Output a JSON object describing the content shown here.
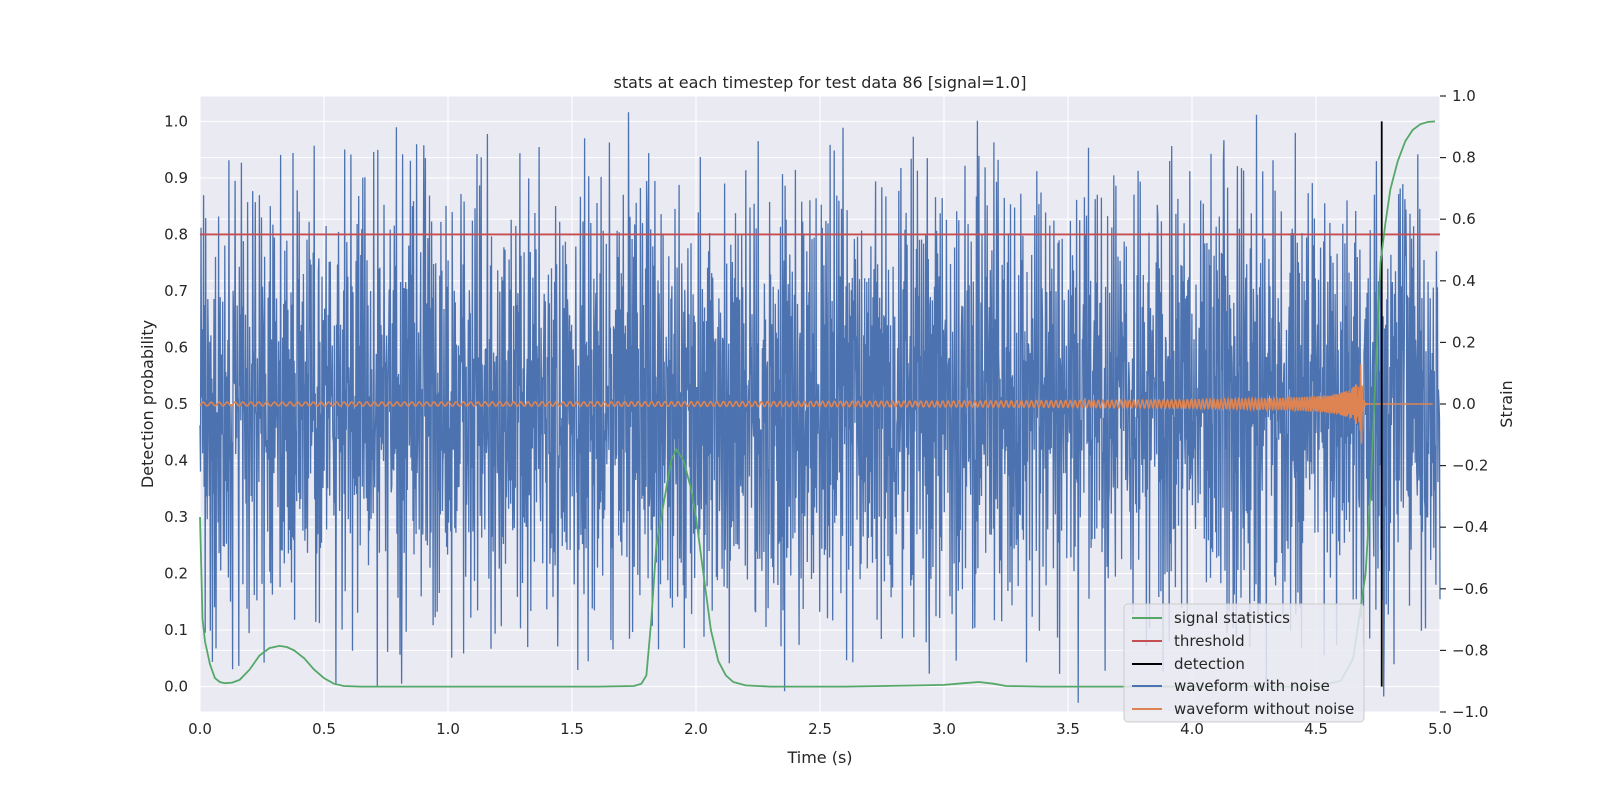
{
  "chart_data": {
    "type": "line",
    "title": "stats at each timestep for test data 86 [signal=1.0]",
    "xlabel": "Time (s)",
    "ylabel_left": "Detection probability",
    "ylabel_right": "Strain",
    "xlim": [
      0.0,
      5.0
    ],
    "ylim_left": [
      -0.045,
      1.045
    ],
    "ylim_right": [
      -1.0,
      1.0
    ],
    "x_ticks": [
      "0.0",
      "0.5",
      "1.0",
      "1.5",
      "2.0",
      "2.5",
      "3.0",
      "3.5",
      "4.0",
      "4.5",
      "5.0"
    ],
    "y_left_ticks": [
      "0.0",
      "0.1",
      "0.2",
      "0.3",
      "0.4",
      "0.5",
      "0.6",
      "0.7",
      "0.8",
      "0.9",
      "1.0"
    ],
    "y_right_ticks": [
      "−1.0",
      "−0.8",
      "−0.6",
      "−0.4",
      "−0.2",
      "0.0",
      "0.2",
      "0.4",
      "0.6",
      "0.8",
      "1.0"
    ],
    "grid": true,
    "legend_position": "bottom-right",
    "colors": {
      "signal_statistics": "#55a868",
      "threshold": "#c44e52",
      "detection": "#000000",
      "waveform_with_noise": "#4c72b0",
      "waveform_without_noise": "#dd8452",
      "plot_background": "#eaeaf2",
      "grid": "#ffffff"
    },
    "series": [
      {
        "name": "signal statistics",
        "axis": "left",
        "x": [
          0.0,
          0.01,
          0.02,
          0.04,
          0.06,
          0.08,
          0.1,
          0.13,
          0.16,
          0.2,
          0.24,
          0.28,
          0.32,
          0.35,
          0.38,
          0.42,
          0.46,
          0.5,
          0.54,
          0.58,
          0.65,
          0.8,
          1.0,
          1.3,
          1.6,
          1.75,
          1.78,
          1.8,
          1.82,
          1.84,
          1.86,
          1.88,
          1.9,
          1.92,
          1.95,
          1.98,
          2.0,
          2.03,
          2.06,
          2.09,
          2.12,
          2.15,
          2.2,
          2.3,
          2.6,
          2.9,
          3.0,
          3.08,
          3.14,
          3.2,
          3.25,
          3.4,
          3.8,
          4.2,
          4.5,
          4.6,
          4.65,
          4.7,
          4.72,
          4.74,
          4.76,
          4.78,
          4.8,
          4.83,
          4.86,
          4.89,
          4.92,
          4.95,
          4.98
        ],
        "values": [
          0.3,
          0.12,
          0.08,
          0.04,
          0.015,
          0.008,
          0.006,
          0.007,
          0.012,
          0.03,
          0.055,
          0.068,
          0.072,
          0.07,
          0.064,
          0.05,
          0.03,
          0.015,
          0.005,
          0.001,
          0.0,
          0.0,
          0.0,
          0.0,
          0.0,
          0.001,
          0.005,
          0.02,
          0.12,
          0.25,
          0.3,
          0.35,
          0.4,
          0.42,
          0.4,
          0.35,
          0.3,
          0.2,
          0.1,
          0.045,
          0.02,
          0.008,
          0.002,
          0.0,
          0.0,
          0.002,
          0.003,
          0.006,
          0.008,
          0.005,
          0.001,
          0.0,
          0.0,
          0.0,
          0.0,
          0.01,
          0.05,
          0.2,
          0.35,
          0.55,
          0.75,
          0.82,
          0.88,
          0.93,
          0.965,
          0.985,
          0.995,
          0.999,
          1.0
        ]
      },
      {
        "name": "threshold",
        "axis": "left",
        "x": [
          0.0,
          5.0
        ],
        "values": [
          0.8,
          0.8
        ]
      },
      {
        "name": "detection",
        "axis": "left",
        "x": [
          4.765,
          4.765
        ],
        "values": [
          0.0,
          1.0
        ]
      },
      {
        "name": "waveform with noise",
        "axis": "right",
        "x_range": [
          0.0,
          5.0
        ],
        "values": [
          0.18,
          -0.31,
          0.42,
          -0.12,
          0.27,
          -0.45,
          0.08,
          0.51,
          -0.22,
          0.14,
          -0.58,
          0.36,
          -0.05,
          0.22,
          -0.39,
          0.47,
          -0.16,
          0.03,
          -0.27,
          0.61,
          -0.41,
          0.12,
          -0.09,
          0.33,
          -0.52,
          0.25,
          -0.18,
          0.44,
          -0.36,
          0.07,
          0.19,
          -0.63,
          0.38,
          -0.11,
          0.29,
          -0.24,
          0.55,
          -0.47,
          0.02,
          0.16,
          -0.34,
          0.41,
          -0.08,
          -0.29,
          0.63,
          -0.2,
          0.1,
          -0.44,
          0.31,
          -0.15,
          0.23,
          -0.55,
          0.49,
          -0.03,
          0.17,
          -0.38,
          0.58,
          -0.26,
          0.06,
          -0.49,
          0.34,
          -0.13,
          0.21,
          -0.6,
          0.45,
          -0.07,
          0.28,
          -0.33,
          0.52,
          -0.19,
          0.01,
          -0.42,
          0.39,
          -0.1,
          0.24,
          -0.57,
          0.47,
          -0.23,
          0.13,
          -0.35,
          0.6,
          -0.28,
          0.09,
          -0.46,
          0.32,
          -0.14,
          0.26,
          -0.51,
          0.43,
          -0.06,
          0.18,
          -0.4,
          0.56,
          -0.21,
          0.04,
          -0.48,
          0.37,
          -0.17,
          0.2,
          -0.59
        ]
      },
      {
        "name": "waveform without noise",
        "axis": "right",
        "x_range": [
          0.0,
          4.97
        ],
        "peak_strain": 0.27,
        "merger_time": 4.68
      }
    ]
  },
  "legend": {
    "items": [
      {
        "label": "signal statistics",
        "color": "#55a868"
      },
      {
        "label": "threshold",
        "color": "#c44e52"
      },
      {
        "label": "detection",
        "color": "#000000"
      },
      {
        "label": "waveform with noise",
        "color": "#4c72b0"
      },
      {
        "label": "waveform without noise",
        "color": "#dd8452"
      }
    ]
  }
}
